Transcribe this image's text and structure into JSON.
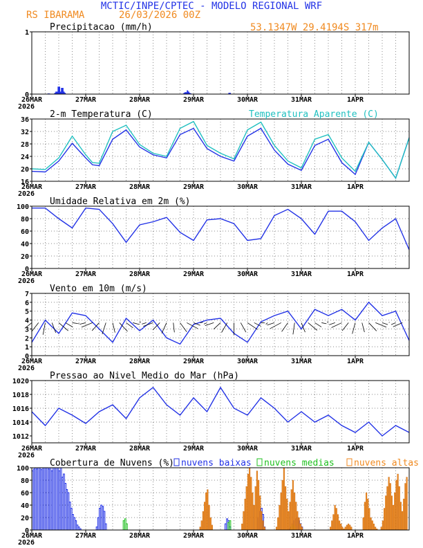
{
  "header": {
    "line1": "MCTIC/INPE/CPTEC - MODELO REGIONAL WRF",
    "station": "RS IBARAMA",
    "run": "26/03/2026 00Z",
    "coords": "53.1347W 29.4194S 317m"
  },
  "colors": {
    "blue": "#2232e6",
    "cyan": "#20c0c0",
    "orange": "#f08a20",
    "green": "#20c020",
    "grid": "#888888"
  },
  "date_labels": [
    "26MAR",
    "27MAR",
    "28MAR",
    "29MAR",
    "30MAR",
    "31MAR",
    "1APR"
  ],
  "year_label": "2026",
  "chart_data": [
    {
      "id": "precip",
      "type": "bar",
      "title": "Precipitacao (mm/h)",
      "ylim": [
        0,
        1
      ],
      "yticks": [
        "0",
        "1"
      ],
      "series": [
        {
          "name": "precip",
          "values": [
            0,
            0,
            0,
            0,
            0,
            0,
            0,
            0,
            0,
            0,
            0,
            0,
            0,
            0,
            0.01,
            0.01,
            0,
            0,
            0,
            0,
            0.02,
            0.04,
            0.04,
            0.12,
            0.12,
            0.04,
            0.1,
            0.1,
            0.04,
            0.02,
            0,
            0,
            0,
            0,
            0,
            0,
            0,
            0,
            0,
            0,
            0,
            0,
            0,
            0,
            0,
            0,
            0,
            0,
            0,
            0,
            0,
            0,
            0,
            0,
            0,
            0,
            0,
            0,
            0,
            0,
            0,
            0,
            0,
            0,
            0,
            0,
            0,
            0,
            0,
            0,
            0,
            0,
            0,
            0,
            0,
            0,
            0,
            0,
            0,
            0,
            0,
            0,
            0,
            0,
            0,
            0,
            0,
            0,
            0,
            0,
            0,
            0,
            0,
            0,
            0,
            0,
            0,
            0,
            0,
            0,
            0,
            0,
            0,
            0,
            0,
            0,
            0,
            0,
            0,
            0,
            0,
            0,
            0,
            0,
            0,
            0,
            0,
            0,
            0,
            0,
            0,
            0,
            0,
            0,
            0,
            0,
            0,
            0,
            0,
            0,
            0,
            0,
            0,
            0,
            0,
            0.02,
            0.03,
            0.03,
            0.06,
            0.04,
            0.02,
            0.01,
            0,
            0,
            0,
            0,
            0,
            0,
            0,
            0,
            0,
            0,
            0,
            0,
            0,
            0,
            0,
            0,
            0,
            0,
            0,
            0,
            0,
            0,
            0,
            0,
            0,
            0,
            0,
            0,
            0,
            0,
            0,
            0,
            0,
            0.02,
            0.02,
            0,
            0,
            0,
            0,
            0,
            0,
            0,
            0,
            0,
            0,
            0,
            0,
            0,
            0,
            0,
            0,
            0,
            0,
            0,
            0,
            0,
            0,
            0,
            0,
            0,
            0,
            0,
            0,
            0,
            0,
            0,
            0,
            0,
            0,
            0,
            0,
            0,
            0,
            0,
            0,
            0,
            0,
            0,
            0,
            0,
            0,
            0,
            0,
            0,
            0,
            0,
            0,
            0,
            0,
            0,
            0,
            0,
            0,
            0,
            0,
            0,
            0,
            0,
            0,
            0,
            0,
            0,
            0,
            0,
            0,
            0,
            0,
            0,
            0,
            0,
            0,
            0,
            0,
            0,
            0,
            0,
            0,
            0,
            0,
            0,
            0,
            0,
            0,
            0,
            0,
            0,
            0,
            0,
            0,
            0,
            0,
            0,
            0,
            0,
            0,
            0,
            0,
            0,
            0,
            0,
            0,
            0,
            0,
            0,
            0,
            0,
            0,
            0,
            0,
            0,
            0,
            0,
            0,
            0,
            0,
            0,
            0,
            0,
            0
          ]
        }
      ]
    },
    {
      "id": "temp",
      "type": "line",
      "title": "2-m Temperatura (C)",
      "legend": "Temperatura Aparente (C)",
      "ylim": [
        16,
        36
      ],
      "yticks": [
        "16",
        "20",
        "24",
        "28",
        "32",
        "36"
      ],
      "series": [
        {
          "name": "Temperatura",
          "color": "blue",
          "x": [
            0,
            6,
            12,
            18,
            24,
            27,
            30,
            36,
            42,
            48,
            54,
            60,
            66,
            72,
            78,
            84,
            90,
            96,
            102,
            108,
            114,
            120,
            126,
            132,
            138,
            144,
            150,
            156,
            162,
            168
          ],
          "values": [
            19.2,
            19.0,
            22.5,
            28.2,
            23.5,
            21.3,
            21.0,
            29.5,
            32.5,
            27.0,
            24.5,
            23.5,
            31.0,
            33.0,
            26.5,
            24.0,
            22.5,
            30.5,
            33.0,
            26.0,
            21.5,
            19.5,
            27.5,
            29.5,
            22.0,
            18.2,
            28.5,
            23.0,
            17.0,
            30.0
          ]
        },
        {
          "name": "Temperatura Aparente",
          "color": "cyan",
          "x": [
            0,
            6,
            12,
            18,
            24,
            27,
            30,
            36,
            42,
            48,
            54,
            60,
            66,
            72,
            78,
            84,
            90,
            96,
            102,
            108,
            114,
            120,
            126,
            132,
            138,
            144,
            150,
            156,
            162,
            168
          ],
          "values": [
            20.0,
            19.8,
            23.5,
            30.5,
            24.5,
            22.0,
            21.8,
            32.0,
            34.0,
            27.8,
            25.0,
            24.0,
            33.0,
            35.2,
            27.5,
            25.0,
            23.2,
            32.5,
            35.0,
            27.5,
            22.5,
            20.3,
            29.5,
            31.0,
            23.5,
            19.2,
            28.5,
            23.0,
            17.0,
            30.0
          ]
        }
      ]
    },
    {
      "id": "rh",
      "type": "line",
      "title": "Umidade Relativa em 2m (%)",
      "ylim": [
        0,
        100
      ],
      "yticks": [
        "0",
        "20",
        "40",
        "60",
        "80",
        "100"
      ],
      "series": [
        {
          "name": "UR",
          "color": "blue",
          "x": [
            0,
            6,
            12,
            18,
            24,
            30,
            36,
            42,
            48,
            54,
            60,
            66,
            72,
            78,
            84,
            90,
            96,
            102,
            108,
            114,
            120,
            126,
            132,
            138,
            144,
            150,
            156,
            162,
            168
          ],
          "values": [
            97,
            97,
            80,
            65,
            97,
            95,
            72,
            42,
            70,
            75,
            82,
            58,
            45,
            78,
            80,
            72,
            45,
            48,
            85,
            95,
            80,
            55,
            92,
            92,
            75,
            45,
            65,
            80,
            30
          ]
        }
      ]
    },
    {
      "id": "wind",
      "type": "line",
      "title": "Vento em 10m (m/s)",
      "ylim": [
        0,
        7
      ],
      "yticks": [
        "0",
        "1",
        "2",
        "3",
        "4",
        "5",
        "6",
        "7"
      ],
      "series": [
        {
          "name": "Vento",
          "color": "blue",
          "x": [
            0,
            6,
            12,
            18,
            24,
            30,
            36,
            42,
            48,
            54,
            60,
            66,
            72,
            78,
            84,
            90,
            96,
            102,
            108,
            114,
            120,
            126,
            132,
            138,
            144,
            150,
            156,
            162,
            168
          ],
          "values": [
            1.5,
            4.0,
            2.5,
            4.8,
            4.5,
            3.0,
            1.5,
            4.2,
            2.8,
            4.0,
            2.0,
            1.3,
            3.5,
            4.0,
            4.2,
            2.5,
            1.5,
            3.8,
            4.5,
            5.0,
            3.0,
            5.2,
            4.5,
            5.2,
            4.0,
            6.0,
            4.5,
            5.0,
            1.7
          ]
        }
      ]
    },
    {
      "id": "pres",
      "type": "line",
      "title": "Pressao ao Nivel Medio do Mar (hPa)",
      "ylim": [
        1011,
        1020
      ],
      "yticks": [
        "1012",
        "1014",
        "1016",
        "1018",
        "1020"
      ],
      "series": [
        {
          "name": "Pressao",
          "color": "blue",
          "x": [
            0,
            6,
            12,
            18,
            24,
            30,
            36,
            42,
            48,
            54,
            60,
            66,
            72,
            78,
            84,
            90,
            96,
            102,
            108,
            114,
            120,
            126,
            132,
            138,
            144,
            150,
            156,
            162,
            168
          ],
          "values": [
            1015.5,
            1013.5,
            1016.0,
            1015.0,
            1013.8,
            1015.5,
            1016.5,
            1014.5,
            1017.5,
            1019.0,
            1016.5,
            1015.0,
            1017.5,
            1015.5,
            1019.0,
            1016.0,
            1015.0,
            1017.5,
            1016.0,
            1014.0,
            1015.5,
            1014.0,
            1015.0,
            1013.5,
            1012.5,
            1014.0,
            1012.0,
            1013.5,
            1012.5
          ]
        }
      ]
    },
    {
      "id": "cloud",
      "type": "bar",
      "title": "Cobertura de Nuvens (%)",
      "ylim": [
        0,
        100
      ],
      "yticks": [
        "0",
        "20",
        "40",
        "60",
        "80",
        "100"
      ],
      "legend": [
        "nuvens baixas",
        "nuvens medias",
        "nuvens altas"
      ],
      "series": [
        {
          "name": "nuvens baixas",
          "color": "blue",
          "from": 0,
          "values": [
            95,
            98,
            100,
            98,
            100,
            100,
            97,
            100,
            100,
            100,
            100,
            98,
            100,
            95,
            100,
            100,
            100,
            100,
            95,
            100,
            85,
            90,
            75,
            65,
            60,
            45,
            35,
            25,
            20,
            15,
            8,
            5,
            2,
            0,
            0,
            0,
            0,
            0,
            0,
            0,
            0,
            0,
            0,
            5,
            20,
            35,
            40,
            38,
            30,
            10,
            0
          ]
        },
        {
          "name": "nuvens baixas 2",
          "color": "blue",
          "from": 128,
          "values": [
            0,
            10,
            18,
            15,
            5,
            0
          ]
        },
        {
          "name": "nuvens baixas 3",
          "color": "blue",
          "from": 150,
          "values": [
            0,
            20,
            30,
            35,
            25,
            5,
            0
          ]
        },
        {
          "name": "nuvens baixas 4",
          "color": "blue",
          "from": 172,
          "values": [
            2,
            5,
            10,
            15,
            18,
            20,
            15,
            10,
            5,
            0
          ]
        },
        {
          "name": "nuvens medias",
          "color": "green",
          "from": 60,
          "values": [
            0,
            15,
            18,
            10,
            0
          ]
        },
        {
          "name": "nuvens medias 2",
          "color": "green",
          "from": 130,
          "values": [
            0,
            12,
            15,
            0
          ]
        },
        {
          "name": "nuvens medias 3",
          "color": "green",
          "from": 172,
          "values": [
            0,
            5,
            8,
            5,
            0
          ]
        },
        {
          "name": "nuvens altas",
          "color": "orange",
          "from": 112,
          "values": [
            5,
            15,
            30,
            45,
            60,
            65,
            40,
            20,
            8,
            0
          ]
        },
        {
          "name": "nuvens altas 2",
          "color": "orange",
          "from": 140,
          "values": [
            10,
            30,
            50,
            70,
            90,
            100,
            85,
            60,
            40,
            70,
            95,
            80,
            55,
            30,
            15,
            5
          ]
        },
        {
          "name": "nuvens altas 3",
          "color": "orange",
          "from": 163,
          "values": [
            5,
            20,
            40,
            60,
            80,
            100,
            70,
            50,
            30,
            45,
            65,
            80,
            60,
            45,
            30,
            20,
            10,
            5
          ]
        },
        {
          "name": "nuvens altas 4",
          "color": "orange",
          "from": 198,
          "values": [
            0,
            5,
            15,
            25,
            40,
            35,
            25,
            15,
            10,
            5,
            2,
            5,
            8,
            10,
            8,
            5
          ]
        },
        {
          "name": "nuvens altas 5",
          "color": "orange",
          "from": 221,
          "values": [
            20,
            45,
            60,
            50,
            35,
            20,
            15,
            10,
            5,
            2,
            0,
            0,
            5,
            15,
            35,
            55,
            70,
            85,
            75,
            55,
            40,
            60,
            80,
            90,
            70,
            45,
            30,
            50,
            75,
            85
          ]
        }
      ]
    }
  ]
}
